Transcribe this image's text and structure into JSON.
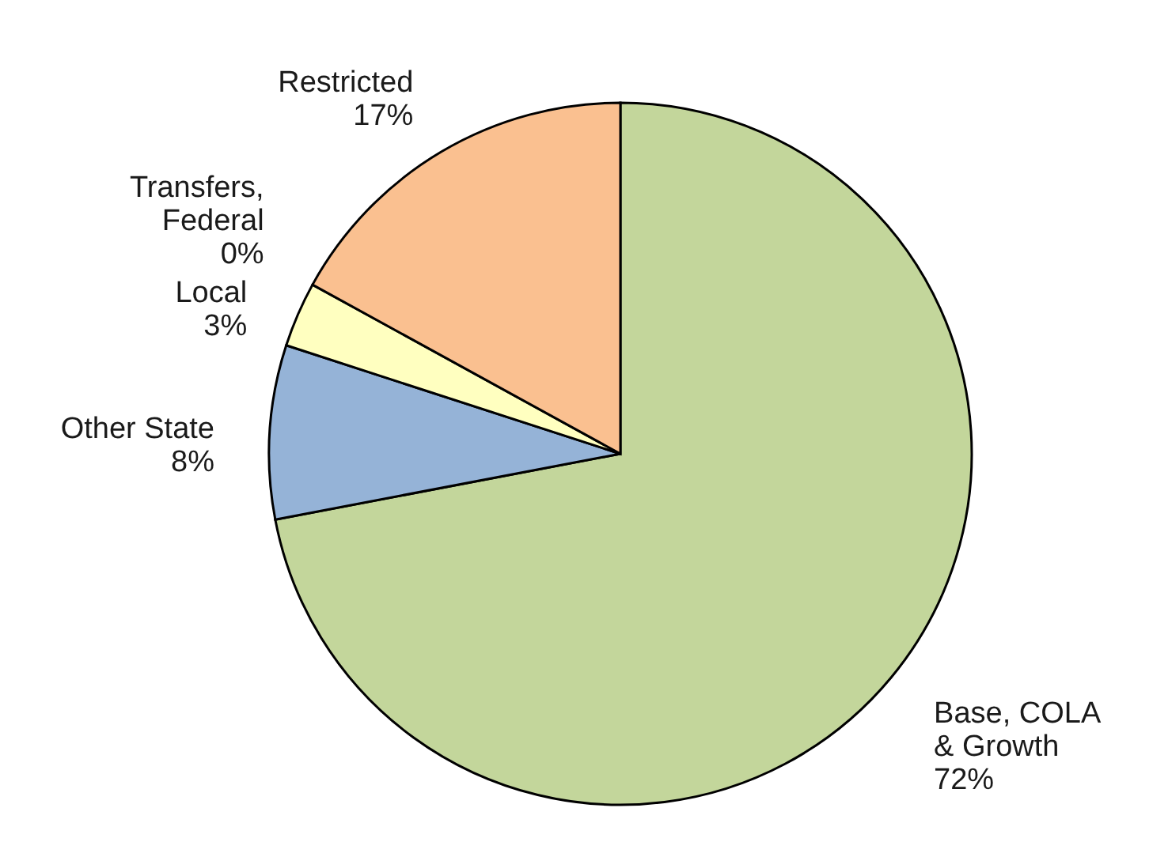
{
  "chart_data": {
    "type": "pie",
    "categories": [
      "Base, COLA\n& Growth",
      "Other State",
      "Local",
      "Transfers,\nFederal",
      "Restricted"
    ],
    "values": [
      72,
      8,
      3,
      0,
      17
    ],
    "value_labels": [
      "72%",
      "8%",
      "3%",
      "0%",
      "17%"
    ],
    "colors": [
      "#c3d69b",
      "#95b3d7",
      "#ffffc0",
      "#bfbfbf",
      "#fac090"
    ]
  }
}
